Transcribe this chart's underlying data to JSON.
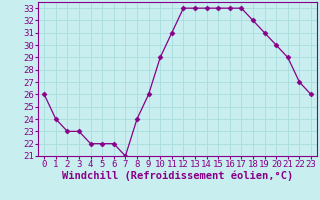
{
  "x": [
    0,
    1,
    2,
    3,
    4,
    5,
    6,
    7,
    8,
    9,
    10,
    11,
    12,
    13,
    14,
    15,
    16,
    17,
    18,
    19,
    20,
    21,
    22,
    23
  ],
  "y": [
    26,
    24,
    23,
    23,
    22,
    22,
    22,
    21,
    24,
    26,
    29,
    31,
    33,
    33,
    33,
    33,
    33,
    33,
    32,
    31,
    30,
    29,
    27,
    26
  ],
  "line_color": "#880088",
  "marker": "D",
  "marker_size": 2.5,
  "bg_color": "#c8eef0",
  "grid_color": "#aadddd",
  "tick_color": "#880088",
  "xlabel": "Windchill (Refroidissement éolien,°C)",
  "xlabel_fontsize": 7.5,
  "xlim": [
    -0.5,
    23.5
  ],
  "ylim": [
    21,
    33.5
  ],
  "yticks": [
    21,
    22,
    23,
    24,
    25,
    26,
    27,
    28,
    29,
    30,
    31,
    32,
    33
  ],
  "xticks": [
    0,
    1,
    2,
    3,
    4,
    5,
    6,
    7,
    8,
    9,
    10,
    11,
    12,
    13,
    14,
    15,
    16,
    17,
    18,
    19,
    20,
    21,
    22,
    23
  ],
  "tick_fontsize": 6.5,
  "figsize": [
    3.2,
    2.0
  ],
  "dpi": 100
}
